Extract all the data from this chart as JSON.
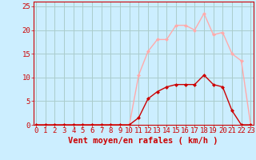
{
  "title": "",
  "xlabel": "Vent moyen/en rafales ( km/h )",
  "background_color": "#cceeff",
  "grid_color": "#aacccc",
  "x_ticks": [
    0,
    1,
    2,
    3,
    4,
    5,
    6,
    7,
    8,
    9,
    10,
    11,
    12,
    13,
    14,
    15,
    16,
    17,
    18,
    19,
    20,
    21,
    22,
    23
  ],
  "y_ticks": [
    0,
    5,
    10,
    15,
    20,
    25
  ],
  "ylim": [
    0,
    26
  ],
  "xlim": [
    -0.3,
    23.3
  ],
  "series_rafales": {
    "x": [
      0,
      1,
      2,
      3,
      4,
      5,
      6,
      7,
      8,
      9,
      10,
      11,
      12,
      13,
      14,
      15,
      16,
      17,
      18,
      19,
      20,
      21,
      22,
      23
    ],
    "y": [
      0,
      0,
      0,
      0,
      0,
      0,
      0,
      0,
      0,
      0,
      0,
      10.5,
      15.5,
      18,
      18,
      21,
      21,
      20,
      23.5,
      19,
      19.5,
      15,
      13.5,
      0
    ],
    "color": "#ffaaaa",
    "marker": "D",
    "markersize": 2.5,
    "linewidth": 1.0
  },
  "series_moyen": {
    "x": [
      0,
      1,
      2,
      3,
      4,
      5,
      6,
      7,
      8,
      9,
      10,
      11,
      12,
      13,
      14,
      15,
      16,
      17,
      18,
      19,
      20,
      21,
      22,
      23
    ],
    "y": [
      0,
      0,
      0,
      0,
      0,
      0,
      0,
      0,
      0,
      0,
      0,
      1.5,
      5.5,
      7,
      8,
      8.5,
      8.5,
      8.5,
      10.5,
      8.5,
      8,
      3,
      0,
      0
    ],
    "color": "#cc0000",
    "marker": "D",
    "markersize": 2.5,
    "linewidth": 1.0
  },
  "xlabel_color": "#cc0000",
  "tick_color": "#cc0000",
  "xlabel_fontsize": 7.5,
  "tick_fontsize": 6.5
}
